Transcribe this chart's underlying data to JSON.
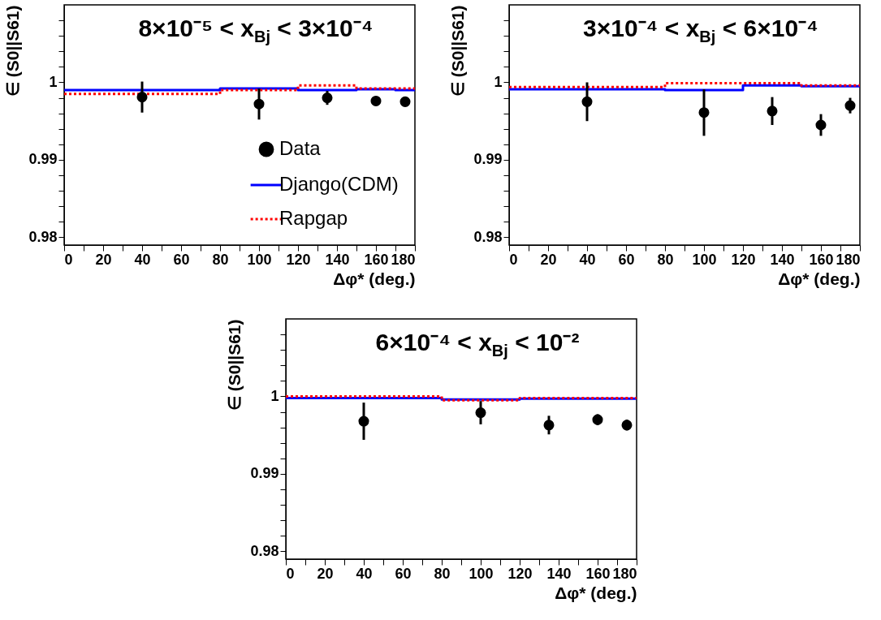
{
  "chart_data": [
    {
      "type": "scatter",
      "title": "8×10⁻⁵ < x$_{Bj}$ < 3×10⁻⁴",
      "xlabel": "Δφ* (deg.)",
      "ylabel": "∈ (S0||S61)",
      "xlim": [
        0,
        180
      ],
      "ylim": [
        0.979,
        1.01
      ],
      "xticks": [
        0,
        {
          "value": 10,
          "label": null
        },
        20,
        {
          "value": 30,
          "label": null
        },
        40,
        {
          "value": 50,
          "label": null
        },
        60,
        {
          "value": 70,
          "label": null
        },
        80,
        {
          "value": 90,
          "label": null
        },
        100,
        {
          "value": 110,
          "label": null
        },
        120,
        {
          "value": 130,
          "label": null
        },
        140,
        {
          "value": 150,
          "label": null
        },
        160,
        {
          "value": 170,
          "label": null
        },
        180
      ],
      "yticks": [
        0.98,
        {
          "value": 0.982,
          "label": null
        },
        {
          "value": 0.984,
          "label": null
        },
        {
          "value": 0.986,
          "label": null
        },
        {
          "value": 0.988,
          "label": null
        },
        0.99,
        {
          "value": 0.992,
          "label": null
        },
        {
          "value": 0.994,
          "label": null
        },
        {
          "value": 0.996,
          "label": null
        },
        {
          "value": 0.998,
          "label": null
        },
        1,
        {
          "value": 1.002,
          "label": null
        },
        {
          "value": 1.004,
          "label": null
        },
        {
          "value": 1.006,
          "label": null
        },
        {
          "value": 1.008,
          "label": null
        }
      ],
      "grid": false,
      "legend": "bottom right",
      "series": [
        {
          "name": "Data",
          "type": "scatter",
          "marker": "circle",
          "color": "#000000",
          "x": [
            40,
            100,
            135,
            160,
            175
          ],
          "values": [
            0.9981,
            0.9972,
            0.998,
            0.9976,
            0.9975
          ],
          "errors": [
            0.002,
            0.002,
            0.0009,
            0.0006,
            0.0006
          ]
        },
        {
          "name": "Django(CDM)",
          "type": "step",
          "line_style": "solid",
          "color": "#0000ff",
          "x": [
            0,
            80,
            120,
            150,
            170,
            180
          ],
          "values": [
            0.999,
            0.9992,
            0.999,
            0.9991,
            0.999,
            0.999
          ]
        },
        {
          "name": "Rapgap",
          "type": "step",
          "line_style": "dotted",
          "color": "#ff0000",
          "x": [
            0,
            80,
            120,
            150,
            180
          ],
          "values": [
            0.9985,
            0.999,
            0.9996,
            0.9992,
            0.9992
          ]
        }
      ]
    },
    {
      "type": "scatter",
      "title": "3×10⁻⁴ < x$_{Bj}$ < 6×10⁻⁴",
      "xlabel": "Δφ* (deg.)",
      "ylabel": "∈ (S0||S61)",
      "xlim": [
        0,
        180
      ],
      "ylim": [
        0.979,
        1.01
      ],
      "xticks": [
        0,
        {
          "value": 10,
          "label": null
        },
        20,
        {
          "value": 30,
          "label": null
        },
        40,
        {
          "value": 50,
          "label": null
        },
        60,
        {
          "value": 70,
          "label": null
        },
        80,
        {
          "value": 90,
          "label": null
        },
        100,
        {
          "value": 110,
          "label": null
        },
        120,
        {
          "value": 130,
          "label": null
        },
        140,
        {
          "value": 150,
          "label": null
        },
        160,
        {
          "value": 170,
          "label": null
        },
        180
      ],
      "yticks": [
        0.98,
        {
          "value": 0.982,
          "label": null
        },
        {
          "value": 0.984,
          "label": null
        },
        {
          "value": 0.986,
          "label": null
        },
        {
          "value": 0.988,
          "label": null
        },
        0.99,
        {
          "value": 0.992,
          "label": null
        },
        {
          "value": 0.994,
          "label": null
        },
        {
          "value": 0.996,
          "label": null
        },
        {
          "value": 0.998,
          "label": null
        },
        1,
        {
          "value": 1.002,
          "label": null
        },
        {
          "value": 1.004,
          "label": null
        },
        {
          "value": 1.006,
          "label": null
        },
        {
          "value": 1.008,
          "label": null
        }
      ],
      "grid": false,
      "series": [
        {
          "type": "scatter",
          "marker": "circle",
          "color": "#000000",
          "x": [
            40,
            100,
            135,
            160,
            175
          ],
          "values": [
            0.9975,
            0.9961,
            0.9963,
            0.9945,
            0.997
          ],
          "errors": [
            0.0025,
            0.003,
            0.0018,
            0.0014,
            0.001
          ]
        },
        {
          "type": "step",
          "line_style": "solid",
          "color": "#0000ff",
          "x": [
            0,
            80,
            120,
            150,
            180
          ],
          "values": [
            0.9991,
            0.999,
            0.9996,
            0.9995,
            0.9995
          ]
        },
        {
          "type": "step",
          "line_style": "dotted",
          "color": "#ff0000",
          "x": [
            0,
            80,
            120,
            150,
            180
          ],
          "values": [
            0.9994,
            0.9999,
            0.9999,
            0.9996,
            0.9996
          ]
        }
      ]
    },
    {
      "type": "scatter",
      "title": "6×10⁻⁴ < x$_{Bj}$ < 10⁻²",
      "xlabel": "Δφ* (deg.)",
      "ylabel": "∈ (S0||S61)",
      "xlim": [
        0,
        180
      ],
      "ylim": [
        0.979,
        1.01
      ],
      "xticks": [
        0,
        {
          "value": 10,
          "label": null
        },
        20,
        {
          "value": 30,
          "label": null
        },
        40,
        {
          "value": 50,
          "label": null
        },
        60,
        {
          "value": 70,
          "label": null
        },
        80,
        {
          "value": 90,
          "label": null
        },
        100,
        {
          "value": 110,
          "label": null
        },
        120,
        {
          "value": 130,
          "label": null
        },
        140,
        {
          "value": 150,
          "label": null
        },
        160,
        {
          "value": 170,
          "label": null
        },
        180
      ],
      "yticks": [
        0.98,
        {
          "value": 0.982,
          "label": null
        },
        {
          "value": 0.984,
          "label": null
        },
        {
          "value": 0.986,
          "label": null
        },
        {
          "value": 0.988,
          "label": null
        },
        0.99,
        {
          "value": 0.992,
          "label": null
        },
        {
          "value": 0.994,
          "label": null
        },
        {
          "value": 0.996,
          "label": null
        },
        {
          "value": 0.998,
          "label": null
        },
        1,
        {
          "value": 1.002,
          "label": null
        },
        {
          "value": 1.004,
          "label": null
        },
        {
          "value": 1.006,
          "label": null
        },
        {
          "value": 1.008,
          "label": null
        }
      ],
      "grid": false,
      "series": [
        {
          "type": "scatter",
          "marker": "circle",
          "color": "#000000",
          "x": [
            40,
            100,
            135,
            160,
            175
          ],
          "values": [
            0.9968,
            0.9979,
            0.9963,
            0.997,
            0.9963
          ],
          "errors": [
            0.0024,
            0.0015,
            0.0012,
            0.0007,
            0.0007
          ]
        },
        {
          "type": "step",
          "line_style": "solid",
          "color": "#0000ff",
          "x": [
            0,
            80,
            120,
            180
          ],
          "values": [
            0.9998,
            0.9996,
            0.9997,
            0.9997
          ]
        },
        {
          "type": "step",
          "line_style": "dotted",
          "color": "#ff0000",
          "x": [
            0,
            80,
            120,
            180
          ],
          "values": [
            1,
            0.9995,
            0.9998,
            0.9998
          ]
        }
      ]
    }
  ]
}
